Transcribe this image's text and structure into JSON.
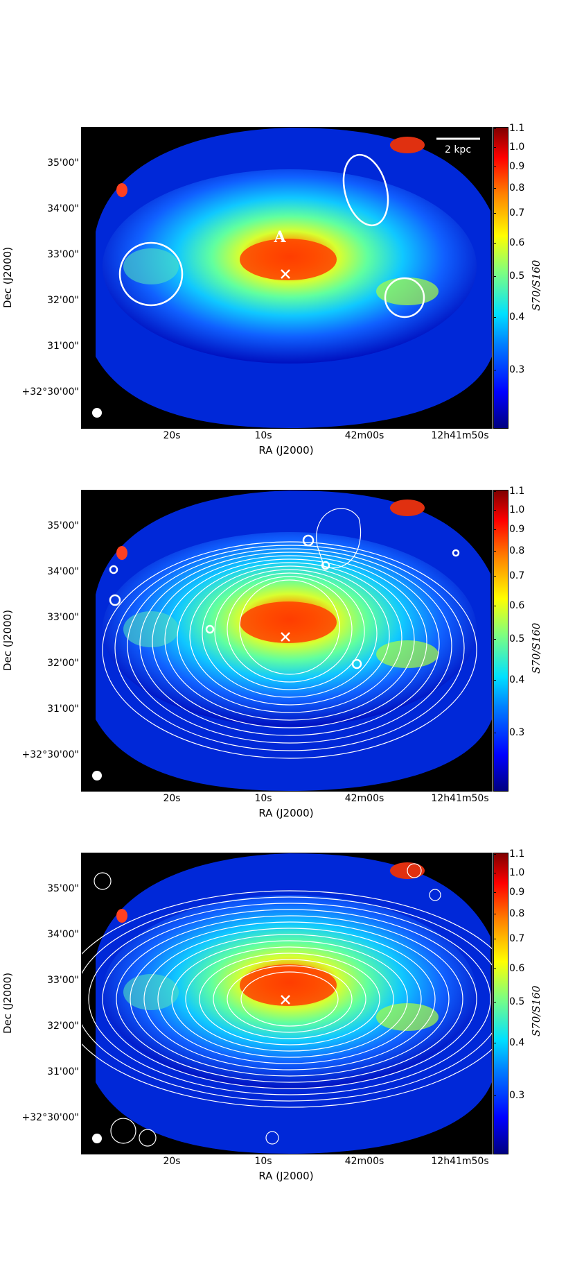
{
  "figure": {
    "panels": [
      {
        "id": "top",
        "y_tick_labels": [
          "35'00\"",
          "34'00\"",
          "33'00\"",
          "32'00\"",
          "31'00\"",
          "+32°30'00\""
        ],
        "x_tick_labels": [
          "20s",
          "10s",
          "42m00s",
          "12h41m50s"
        ],
        "xlabel": "RA (J2000)",
        "ylabel": "Dec (J2000)",
        "colorbar_ticks": [
          "1.1",
          "1.0",
          "0.9",
          "0.8",
          "0.7",
          "0.6",
          "0.5",
          "0.4",
          "0.3"
        ],
        "colorbar_label": "S70/S160",
        "scale_bar_label": "2 kpc",
        "annotation": "A",
        "overlay": "regions"
      },
      {
        "id": "middle",
        "y_tick_labels": [
          "35'00\"",
          "34'00\"",
          "33'00\"",
          "32'00\"",
          "31'00\"",
          "+32°30'00\""
        ],
        "x_tick_labels": [
          "20s",
          "10s",
          "42m00s",
          "12h41m50s"
        ],
        "xlabel": "RA (J2000)",
        "ylabel": "Dec (J2000)",
        "colorbar_ticks": [
          "1.1",
          "1.0",
          "0.9",
          "0.8",
          "0.7",
          "0.6",
          "0.5",
          "0.4",
          "0.3"
        ],
        "colorbar_label": "S70/S160",
        "overlay": "contours-compact"
      },
      {
        "id": "bottom",
        "y_tick_labels": [
          "35'00\"",
          "34'00\"",
          "33'00\"",
          "32'00\"",
          "31'00\"",
          "+32°30'00\""
        ],
        "x_tick_labels": [
          "20s",
          "10s",
          "42m00s",
          "12h41m50s"
        ],
        "xlabel": "RA (J2000)",
        "ylabel": "Dec (J2000)",
        "colorbar_ticks": [
          "1.1",
          "1.0",
          "0.9",
          "0.8",
          "0.7",
          "0.6",
          "0.5",
          "0.4",
          "0.3"
        ],
        "colorbar_label": "S70/S160",
        "overlay": "contours-extended"
      }
    ],
    "colormap": "jet",
    "colorbar_range": [
      0.2,
      1.1
    ]
  }
}
